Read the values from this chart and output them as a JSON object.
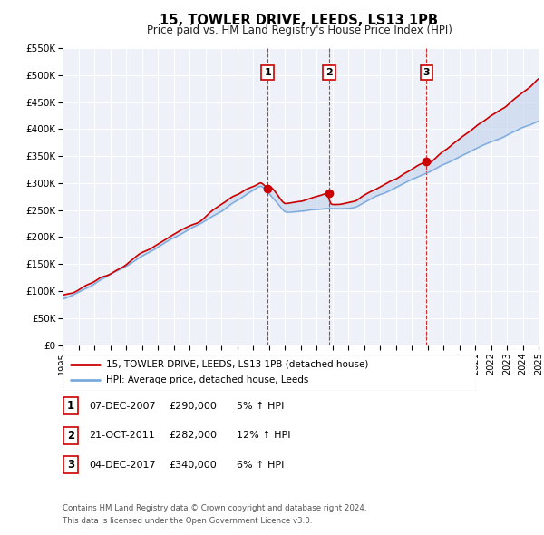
{
  "title": "15, TOWLER DRIVE, LEEDS, LS13 1PB",
  "subtitle": "Price paid vs. HM Land Registry's House Price Index (HPI)",
  "red_label": "15, TOWLER DRIVE, LEEDS, LS13 1PB (detached house)",
  "blue_label": "HPI: Average price, detached house, Leeds",
  "transactions": [
    {
      "num": 1,
      "date": "07-DEC-2007",
      "price": 290000,
      "pct": "5%",
      "dir": "↑",
      "rel": "HPI",
      "x_year": 2007.92
    },
    {
      "num": 2,
      "date": "21-OCT-2011",
      "price": 282000,
      "pct": "12%",
      "dir": "↑",
      "rel": "HPI",
      "x_year": 2011.8
    },
    {
      "num": 3,
      "date": "04-DEC-2017",
      "price": 340000,
      "pct": "6%",
      "dir": "↑",
      "rel": "HPI",
      "x_year": 2017.92
    }
  ],
  "footer_line1": "Contains HM Land Registry data © Crown copyright and database right 2024.",
  "footer_line2": "This data is licensed under the Open Government Licence v3.0.",
  "xmin": 1995,
  "xmax": 2025,
  "ymin": 0,
  "ymax": 550000,
  "yticks": [
    0,
    50000,
    100000,
    150000,
    200000,
    250000,
    300000,
    350000,
    400000,
    450000,
    500000,
    550000
  ],
  "ytick_labels": [
    "£0",
    "£50K",
    "£100K",
    "£150K",
    "£200K",
    "£250K",
    "£300K",
    "£350K",
    "£400K",
    "£450K",
    "£500K",
    "£550K"
  ],
  "plot_bg": "#eef2f8",
  "grid_color": "#ffffff",
  "red_color": "#cc0000",
  "blue_color": "#7aaadd",
  "shade_color": "#c8d8ee"
}
